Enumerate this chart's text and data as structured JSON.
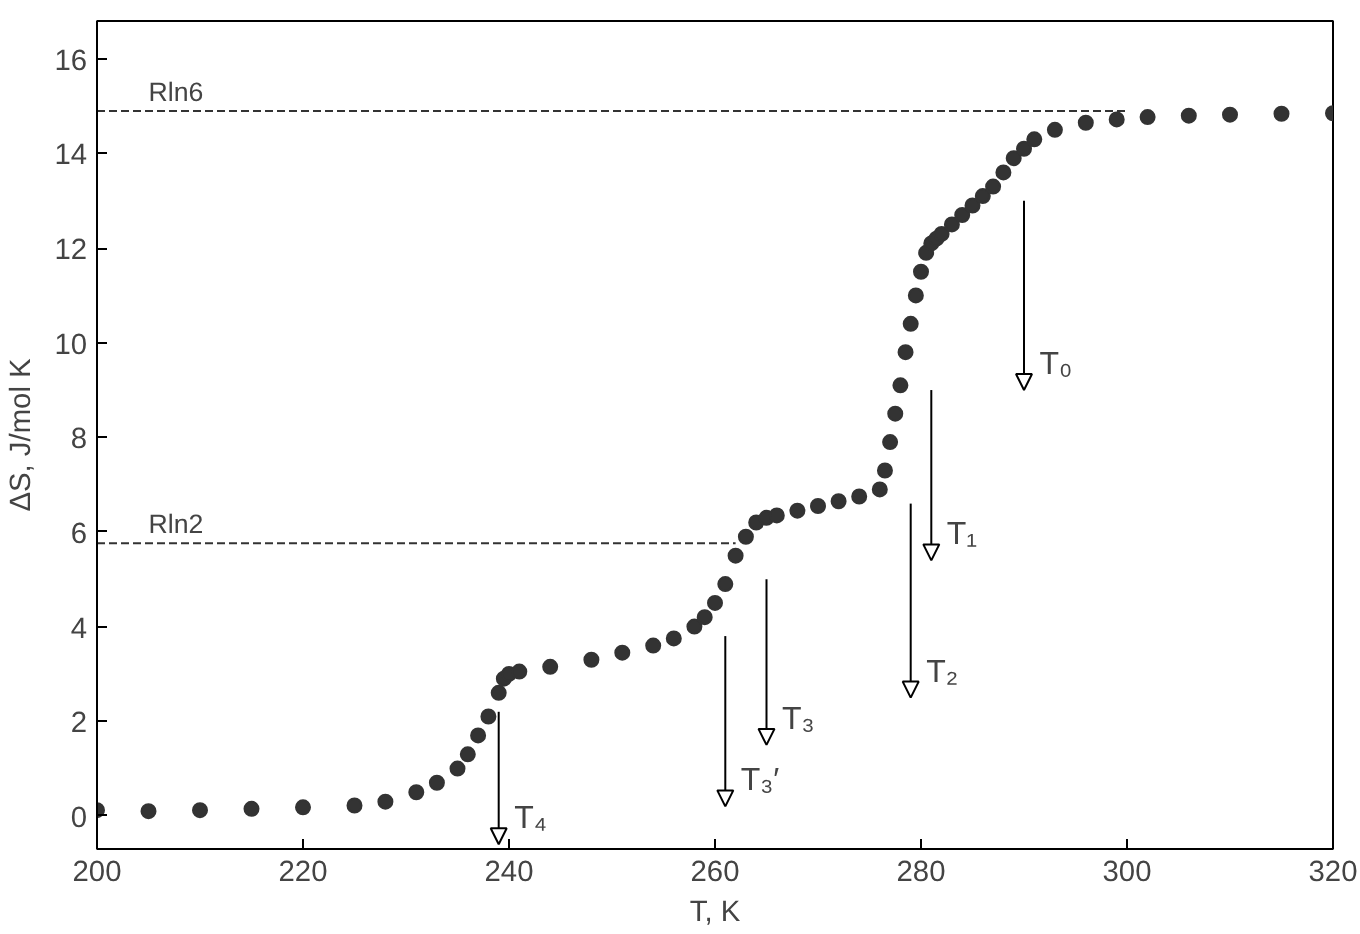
{
  "chart_data": {
    "type": "scatter",
    "xlabel": "T, K",
    "ylabel": "ΔS, J/mol K",
    "xlim": [
      200,
      320
    ],
    "ylim": [
      -0.7,
      16.8
    ],
    "xticks": [
      200,
      220,
      240,
      260,
      280,
      300,
      320
    ],
    "yticks": [
      0,
      2,
      4,
      6,
      8,
      10,
      12,
      14,
      16
    ],
    "grid": false,
    "series": [
      {
        "color": "#333333",
        "marker": "circle",
        "x": [
          200,
          205,
          210,
          215,
          220,
          225,
          228,
          231,
          233,
          235,
          236,
          237,
          238,
          239,
          239.5,
          240,
          241,
          244,
          248,
          251,
          254,
          256,
          258,
          259,
          260,
          261,
          262,
          263,
          264,
          265,
          266,
          268,
          270,
          272,
          274,
          276,
          276.5,
          277,
          277.5,
          278,
          278.5,
          279,
          279.5,
          280,
          280.5,
          281,
          281.5,
          282,
          283,
          284,
          285,
          286,
          287,
          288,
          289,
          290,
          291,
          293,
          296,
          299,
          302,
          306,
          310,
          315,
          320
        ],
        "values": [
          0.12,
          0.1,
          0.12,
          0.15,
          0.18,
          0.22,
          0.3,
          0.5,
          0.7,
          1.0,
          1.3,
          1.7,
          2.1,
          2.6,
          2.9,
          3.0,
          3.05,
          3.15,
          3.3,
          3.45,
          3.6,
          3.75,
          4.0,
          4.2,
          4.5,
          4.9,
          5.5,
          5.9,
          6.2,
          6.3,
          6.35,
          6.45,
          6.55,
          6.65,
          6.75,
          6.9,
          7.3,
          7.9,
          8.5,
          9.1,
          9.8,
          10.4,
          11.0,
          11.5,
          11.9,
          12.1,
          12.2,
          12.3,
          12.5,
          12.7,
          12.9,
          13.1,
          13.3,
          13.6,
          13.9,
          14.1,
          14.3,
          14.5,
          14.65,
          14.72,
          14.77,
          14.8,
          14.82,
          14.84,
          14.85
        ]
      },
      {
        "type": "line",
        "name": "Rln6",
        "color": "#333333",
        "line_style": "dashed",
        "marker": "none",
        "x": [
          200,
          300
        ],
        "values": [
          14.9,
          14.9
        ]
      },
      {
        "type": "line",
        "name": "Rln2",
        "color": "#333333",
        "line_style": "dashed",
        "marker": "none",
        "x": [
          200,
          262
        ],
        "values": [
          5.76,
          5.76
        ]
      }
    ],
    "annotations": [
      "T₄",
      "T₃′",
      "T₃",
      "T₂",
      "T₁",
      "T₀"
    ]
  }
}
